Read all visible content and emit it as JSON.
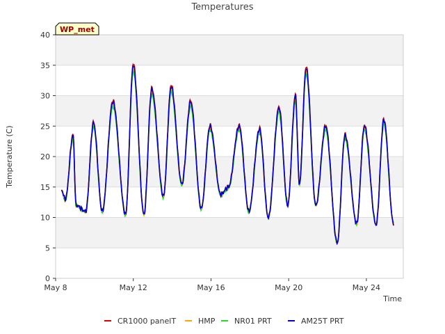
{
  "chart_data": {
    "type": "line",
    "title": "Temperatures",
    "xlabel": "Time",
    "ylabel": "Temperature (C)",
    "station_label": "WP_met",
    "xlim": [
      8,
      25.9
    ],
    "ylim": [
      0,
      40
    ],
    "yticks": [
      0,
      5,
      10,
      15,
      20,
      25,
      30,
      35,
      40
    ],
    "xticks": [
      {
        "value": 8,
        "label": "May 8"
      },
      {
        "value": 12,
        "label": "May 12"
      },
      {
        "value": 16,
        "label": "May 16"
      },
      {
        "value": 20,
        "label": "May 20"
      },
      {
        "value": 24,
        "label": "May 24"
      }
    ],
    "colors": {
      "band": "#f2f2f2",
      "grid": "#dddddd",
      "station_fill": "#ffffcc",
      "station_text": "#990000"
    },
    "series": [
      {
        "name": "CR1000 panelT",
        "color": "#dd0000",
        "offset": 0.3
      },
      {
        "name": "HMP",
        "color": "#ffa500",
        "offset": -0.6
      },
      {
        "name": "NR01 PRT",
        "color": "#22dd22",
        "offset": -1.0
      },
      {
        "name": "AM25T PRT",
        "color": "#0000cc",
        "offset": 0
      }
    ],
    "base_extrema": {
      "x": [
        8.3,
        8.5,
        8.9,
        9.05,
        9.55,
        9.95,
        10.4,
        10.95,
        11.6,
        12.0,
        12.55,
        12.95,
        13.55,
        13.95,
        14.5,
        14.95,
        15.5,
        15.95,
        16.5,
        16.9,
        17.45,
        17.95,
        18.5,
        18.95,
        19.5,
        19.95,
        20.35,
        20.55,
        20.9,
        21.4,
        21.9,
        22.5,
        22.9,
        23.5,
        23.9,
        24.5,
        24.9,
        25.4
      ],
      "y": [
        14.5,
        13.0,
        23.5,
        12.0,
        11.0,
        25.5,
        11.0,
        29.0,
        10.5,
        35.0,
        10.5,
        31.0,
        13.5,
        31.5,
        15.5,
        29.0,
        11.5,
        25.0,
        13.8,
        15.0,
        25.0,
        11.0,
        24.5,
        10.0,
        28.0,
        12.0,
        30.0,
        15.5,
        34.5,
        12.0,
        25.0,
        5.8,
        23.5,
        9.0,
        25.0,
        8.8,
        26.0,
        9.0
      ]
    }
  }
}
